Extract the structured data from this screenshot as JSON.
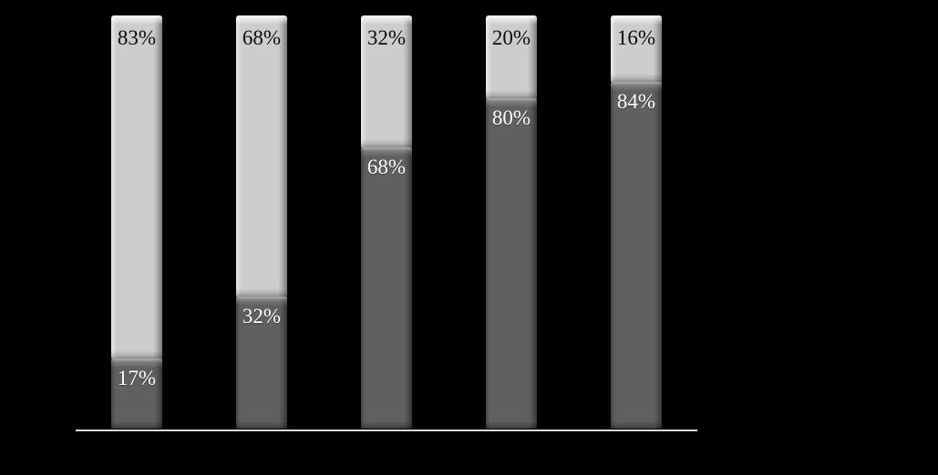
{
  "chart_data": {
    "type": "bar",
    "subtype": "100-percent-stacked-column",
    "title": "",
    "xlabel": "",
    "ylabel": "",
    "ylim": [
      0,
      100
    ],
    "grid": false,
    "legend": false,
    "background_color": "#000000",
    "axis_line_color": "#d9d9d9",
    "series": [
      {
        "name": "bottom-dark-segment",
        "color": "#606060",
        "values": [
          17,
          32,
          68,
          80,
          84
        ]
      },
      {
        "name": "top-light-segment",
        "color": "#cdcdcd",
        "values": [
          83,
          68,
          32,
          20,
          16
        ]
      }
    ],
    "bars": [
      {
        "top_label": "83%",
        "top_value": 83,
        "bottom_label": "17%",
        "bottom_value": 17
      },
      {
        "top_label": "68%",
        "top_value": 68,
        "bottom_label": "32%",
        "bottom_value": 32
      },
      {
        "top_label": "32%",
        "top_value": 32,
        "bottom_label": "68%",
        "bottom_value": 68
      },
      {
        "top_label": "20%",
        "top_value": 20,
        "bottom_label": "80%",
        "bottom_value": 80
      },
      {
        "top_label": "16%",
        "top_value": 16,
        "bottom_label": "84%",
        "bottom_value": 84
      }
    ]
  }
}
